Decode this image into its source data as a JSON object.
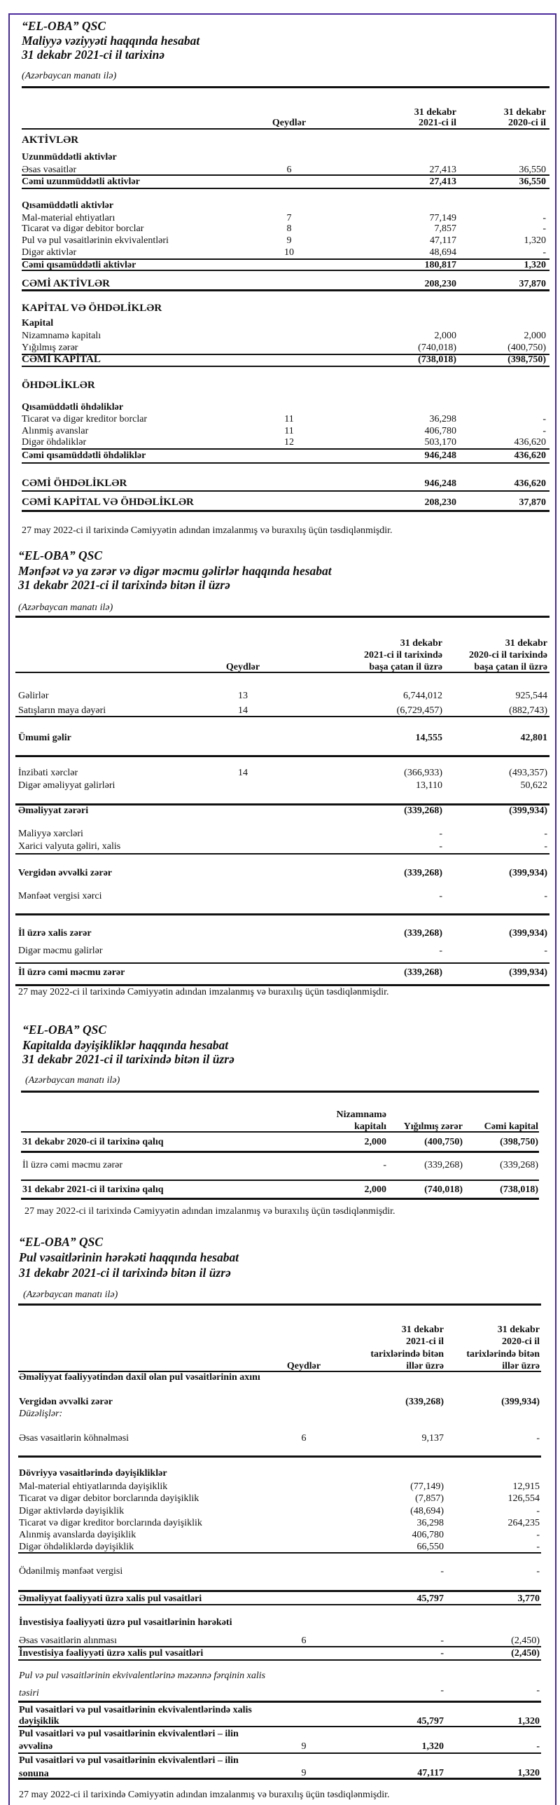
{
  "statements": [
    {
      "company": "“EL-OBA” QSC",
      "title": "Maliyyə vəziyyəti haqqında hesabat",
      "period": "31 dekabr 2021-ci il tarixinə",
      "currency": "(Azərbaycan manatı ilə)",
      "notes_header": "Qeydlər",
      "columns": [
        [
          "31 dekabr",
          "2021-ci il"
        ],
        [
          "31 dekabr",
          "2020-ci il"
        ]
      ],
      "rows": [
        {
          "label": "AKTİVLƏR"
        },
        {
          "label": "Uzunmüddətli aktivlər"
        },
        {
          "label": "Əsas vəsaitlər",
          "note": "6",
          "values": [
            "27,413",
            "36,550"
          ]
        },
        {
          "label": "Cəmi uzunmüddətli aktivlər",
          "values": [
            "27,413",
            "36,550"
          ]
        },
        {
          "label": "Qısamüddətli aktivlər"
        },
        {
          "label": "Mal-material ehtiyatları",
          "note": "7",
          "values": [
            "77,149",
            "-"
          ]
        },
        {
          "label": "Ticarət və digər debitor borclar",
          "note": "8",
          "values": [
            "7,857",
            "-"
          ]
        },
        {
          "label": "Pul və pul vəsaitlərinin ekvivalentləri",
          "note": "9",
          "values": [
            "47,117",
            "1,320"
          ]
        },
        {
          "label": "Digər aktivlər",
          "note": "10",
          "values": [
            "48,694",
            "-"
          ]
        },
        {
          "label": "Cəmi  qısamüddətli aktivlər",
          "values": [
            "180,817",
            "1,320"
          ]
        },
        {
          "label": "CƏMİ AKTİVLƏR",
          "values": [
            "208,230",
            "37,870"
          ]
        },
        {
          "label": "KAPİTAL VƏ ÖHDƏLİKLƏR"
        },
        {
          "label": "Kapital"
        },
        {
          "label": "Nizamnamə kapitalı",
          "values": [
            "2,000",
            "2,000"
          ]
        },
        {
          "label": "Yığılmış zərər",
          "values": [
            "(740,018)",
            "(400,750)"
          ]
        },
        {
          "label": "CƏMİ KAPİTAL",
          "values": [
            "(738,018)",
            "(398,750)"
          ]
        },
        {
          "label": "ÖHDƏLİKLƏR"
        },
        {
          "label": "Qısamüddətli öhdəliklər"
        },
        {
          "label": "Ticarət və digər kreditor borclar",
          "note": "11",
          "values": [
            "36,298",
            "-"
          ]
        },
        {
          "label": "Alınmiş avanslar",
          "note": "11",
          "values": [
            "406,780",
            "-"
          ]
        },
        {
          "label": "Digər öhdəliklər",
          "note": "12",
          "values": [
            "503,170",
            "436,620"
          ]
        },
        {
          "label": "Cəmi qısamüddətli öhdəliklər",
          "values": [
            "946,248",
            "436,620"
          ]
        },
        {
          "label": "CƏMİ ÖHDƏLİKLƏR",
          "values": [
            "946,248",
            "436,620"
          ]
        },
        {
          "label": "CƏMİ KAPİTAL VƏ ÖHDƏLİKLƏR",
          "values": [
            "208,230",
            "37,870"
          ]
        }
      ],
      "footnote": "27 may 2022-ci il tarixində Cəmiyyətin adından imzalanmış və buraxılış üçün təsdiqlənmişdir."
    },
    {
      "company": "“EL-OBA” QSC",
      "title": "Mənfəət və ya zərər və digər məcmu gəlirlər haqqında hesabat",
      "period": "31 dekabr 2021-ci il tarixində bitən il üzrə",
      "currency": "(Azərbaycan manatı ilə)",
      "notes_header": "Qeydlər",
      "columns": [
        [
          "31 dekabr",
          "2021-ci il tarixində",
          "başa çatan il üzrə"
        ],
        [
          "31 dekabr",
          "2020-ci il tarixində",
          "başa çatan il üzrə"
        ]
      ],
      "rows": [
        {
          "label": "Gəlirlər",
          "note": "13",
          "values": [
            "6,744,012",
            "925,544"
          ]
        },
        {
          "label": "Satışların maya dəyəri",
          "note": "14",
          "values": [
            "(6,729,457)",
            "(882,743)"
          ]
        },
        {
          "label": "Ümumi gəlir",
          "values": [
            "14,555",
            "42,801"
          ]
        },
        {
          "label": "İnzibati xərclər",
          "note": "14",
          "values": [
            "(366,933)",
            "(493,357)"
          ]
        },
        {
          "label": "Digər əməliyyat gəlirləri",
          "values": [
            "13,110",
            "50,622"
          ]
        },
        {
          "label": "Əməliyyat zərəri",
          "values": [
            "(339,268)",
            "(399,934)"
          ]
        },
        {
          "label": "Maliyyə xərcləri",
          "values": [
            "-",
            "-"
          ]
        },
        {
          "label": "Xarici valyuta gəliri, xalis",
          "values": [
            "-",
            "-"
          ]
        },
        {
          "label": "Vergidən əvvəlki zərər",
          "values": [
            "(339,268)",
            "(399,934)"
          ]
        },
        {
          "label": "Mənfəət vergisi xərci",
          "values": [
            "-",
            "-"
          ]
        },
        {
          "label": "İl üzrə xalis zərər",
          "values": [
            "(339,268)",
            "(399,934)"
          ]
        },
        {
          "label": "Digər məcmu gəlirlər",
          "values": [
            "-",
            "-"
          ]
        },
        {
          "label": "İl üzrə cəmi məcmu zərər",
          "values": [
            "(339,268)",
            "(399,934)"
          ]
        }
      ],
      "footnote": "27 may 2022-ci il tarixində Cəmiyyətin adından imzalanmış və buraxılış üçün təsdiqlənmişdir."
    },
    {
      "company": "“EL-OBA” QSC",
      "title": "Kapitalda dəyişikliklər haqqında hesabat",
      "period": "31 dekabr 2021-ci il tarixində bitən il üzrə",
      "currency": "(Azərbaycan manatı ilə)",
      "columns": [
        [
          "Nizamnamə",
          "kapitalı"
        ],
        [
          "Yığılmış zərər"
        ],
        [
          "Cəmi kapital"
        ]
      ],
      "rows": [
        {
          "label": "31 dekabr 2020-ci il tarixinə qalıq",
          "values": [
            "2,000",
            "(400,750)",
            "(398,750)"
          ]
        },
        {
          "label": "İl üzrə cəmi məcmu zərər",
          "values": [
            "-",
            "(339,268)",
            "(339,268)"
          ]
        },
        {
          "label": "31 dekabr 2021-ci il tarixinə qalıq",
          "values": [
            "2,000",
            "(740,018)",
            "(738,018)"
          ]
        }
      ],
      "footnote": "27 may 2022-ci il tarixində Cəmiyyətin adından imzalanmış və buraxılış üçün təsdiqlənmişdir."
    },
    {
      "company": "“EL-OBA” QSC",
      "title": "Pul vəsaitlərinin hərəkəti haqqında hesabat",
      "period": "31 dekabr 2021-ci il tarixində bitən il üzrə",
      "currency": "(Azərbaycan manatı ilə)",
      "notes_header": "Qeydlər",
      "columns": [
        [
          "31 dekabr",
          "2021-ci il",
          "tarixlərində bitən",
          "illər üzrə"
        ],
        [
          "31 dekabr",
          "2020-ci il",
          "tarixlərində bitən",
          "illər üzrə"
        ]
      ],
      "rows": [
        {
          "label": "Əməliyyat fəaliyyətindən daxil olan pul vəsaitlərinin axını"
        },
        {
          "label": "Vergidən əvvəlki zərər",
          "values": [
            "(339,268)",
            "(399,934)"
          ]
        },
        {
          "label": "Düzəlişlər:"
        },
        {
          "label": "Əsas vəsaitlərin köhnəlməsi",
          "note": "6",
          "values": [
            "9,137",
            "-"
          ]
        },
        {
          "label": "Dövriyyə vəsaitlərində dəyişikliklər"
        },
        {
          "label": "Mal-material ehtiyatlarında dəyişiklik",
          "values": [
            "(77,149)",
            "12,915"
          ]
        },
        {
          "label": "Ticarət və digər debitor borclarında dəyişiklik",
          "values": [
            "(7,857)",
            "126,554"
          ]
        },
        {
          "label": "Digər aktivlərdə dəyişiklik",
          "values": [
            "(48,694)",
            "-"
          ]
        },
        {
          "label": "Ticarət və digər kreditor borclarında dəyişiklik",
          "values": [
            "36,298",
            "264,235"
          ]
        },
        {
          "label": "Alınmiş avanslarda dəyişiklik",
          "values": [
            "406,780",
            "-"
          ]
        },
        {
          "label": "Digər öhdəliklərdə dəyişiklik",
          "values": [
            "66,550",
            "-"
          ]
        },
        {
          "label": "Ödənilmiş mənfəət vergisi",
          "values": [
            "-",
            "-"
          ]
        },
        {
          "label": "Əməliyyat fəaliyyəti üzrə xalis pul vəsaitləri",
          "values": [
            "45,797",
            "3,770"
          ]
        },
        {
          "label": "İnvestisiya fəaliyyəti üzrə pul vəsaitlərinin hərəkəti"
        },
        {
          "label": "Əsas vəsaitlərin alınması",
          "note": "6",
          "values": [
            "-",
            "(2,450)"
          ]
        },
        {
          "label": "İnvestisiya fəaliyyəti üzrə xalis pul vəsaitləri",
          "values": [
            "-",
            "(2,450)"
          ]
        },
        {
          "label": "Pul və pul vəsaitlərinin ekvivalentlərinə məzənnə fərqinin xalis təsiri",
          "values": [
            "-",
            "-"
          ]
        },
        {
          "label": "Pul vəsaitləri və pul vəsaitlərinin ekvivalentlərində xalis dəyişiklik",
          "values": [
            "45,797",
            "1,320"
          ]
        },
        {
          "label": "Pul vəsaitləri və pul vəsaitlərinin ekvivalentləri – ilin əvvəlinə",
          "note": "9",
          "values": [
            "1,320",
            "-"
          ]
        },
        {
          "label": "Pul vəsaitləri və pul vəsaitlərinin ekvivalentləri – ilin sonuna",
          "note": "9",
          "values": [
            "47,117",
            "1,320"
          ]
        }
      ],
      "footnote": "27 may 2022-ci il tarixində Cəmiyyətin adından imzalanmış və buraxılış üçün təsdiqlənmişdir."
    }
  ]
}
